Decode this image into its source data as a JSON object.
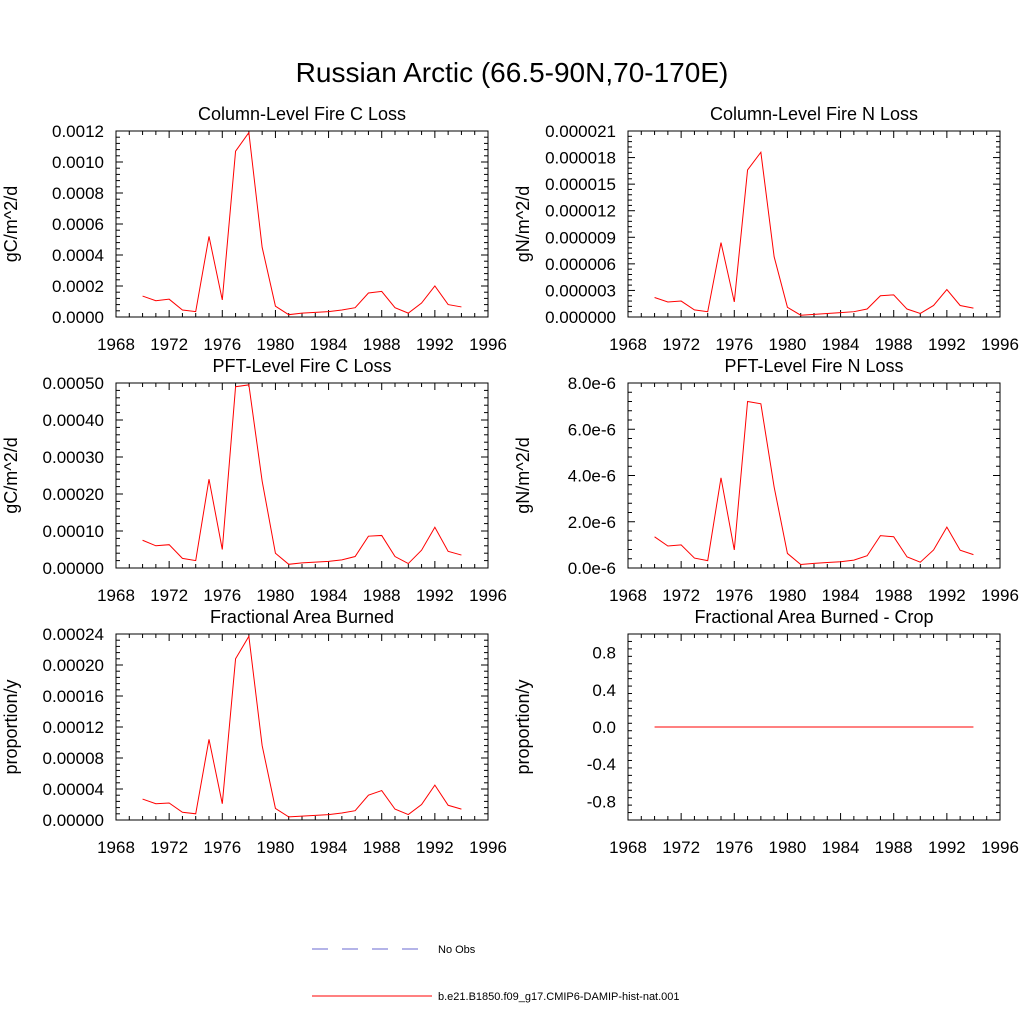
{
  "figure_title": "Russian Arctic (66.5-90N,70-170E)",
  "legend": {
    "entries": [
      {
        "label": "No Obs",
        "style": "dashed",
        "color": "#6a6ad0"
      },
      {
        "label": "b.e21.B1850.f09_g17.CMIP6-DAMIP-hist-nat.001",
        "style": "solid",
        "color": "#ff0000"
      }
    ]
  },
  "chart_data": [
    {
      "type": "line",
      "title": "Column-Level Fire C Loss",
      "xlabel": "",
      "ylabel": "gC/m^2/d",
      "xlim": [
        1968,
        1996
      ],
      "ylim": [
        0,
        0.0012
      ],
      "xticks": [
        1968,
        1972,
        1976,
        1980,
        1984,
        1988,
        1992,
        1996
      ],
      "yticks": [
        0,
        0.0002,
        0.0004,
        0.0006,
        0.0008,
        0.001,
        0.0012
      ],
      "ytick_labels": [
        "0.0000",
        "0.0002",
        "0.0004",
        "0.0006",
        "0.0008",
        "0.0010",
        "0.0012"
      ],
      "x": [
        1970,
        1971,
        1972,
        1973,
        1974,
        1975,
        1976,
        1977,
        1978,
        1979,
        1980,
        1981,
        1982,
        1983,
        1984,
        1985,
        1986,
        1987,
        1988,
        1989,
        1990,
        1991,
        1992,
        1993,
        1994
      ],
      "series": [
        {
          "name": "b.e21.B1850.f09_g17.CMIP6-DAMIP-hist-nat.001",
          "color": "#ff0000",
          "values": [
            0.000135,
            0.000105,
            0.000115,
            4.5e-05,
            3.5e-05,
            0.00052,
            0.00011,
            0.00107,
            0.00119,
            0.00045,
            7e-05,
            1.5e-05,
            2.5e-05,
            3e-05,
            3.5e-05,
            4.5e-05,
            6e-05,
            0.000155,
            0.000165,
            6e-05,
            2.5e-05,
            9e-05,
            0.0002,
            8e-05,
            6.5e-05
          ]
        }
      ]
    },
    {
      "type": "line",
      "title": "Column-Level Fire N Loss",
      "xlabel": "",
      "ylabel": "gN/m^2/d",
      "xlim": [
        1968,
        1996
      ],
      "ylim": [
        0,
        2.1e-05
      ],
      "xticks": [
        1968,
        1972,
        1976,
        1980,
        1984,
        1988,
        1992,
        1996
      ],
      "yticks": [
        0,
        3e-06,
        6e-06,
        9e-06,
        1.2e-05,
        1.5e-05,
        1.8e-05,
        2.1e-05
      ],
      "ytick_labels": [
        "0.000000",
        "0.000003",
        "0.000006",
        "0.000009",
        "0.000012",
        "0.000015",
        "0.000018",
        "0.000021"
      ],
      "x": [
        1970,
        1971,
        1972,
        1973,
        1974,
        1975,
        1976,
        1977,
        1978,
        1979,
        1980,
        1981,
        1982,
        1983,
        1984,
        1985,
        1986,
        1987,
        1988,
        1989,
        1990,
        1991,
        1992,
        1993,
        1994
      ],
      "series": [
        {
          "name": "b.e21.B1850.f09_g17.CMIP6-DAMIP-hist-nat.001",
          "color": "#ff0000",
          "values": [
            2.2e-06,
            1.7e-06,
            1.8e-06,
            8e-07,
            6e-07,
            8.4e-06,
            1.7e-06,
            1.66e-05,
            1.86e-05,
            6.8e-06,
            1.1e-06,
            2e-07,
            3e-07,
            4e-07,
            5e-07,
            6e-07,
            9e-07,
            2.4e-06,
            2.5e-06,
            9e-07,
            4e-07,
            1.3e-06,
            3.1e-06,
            1.3e-06,
            1e-06
          ]
        }
      ]
    },
    {
      "type": "line",
      "title": "PFT-Level Fire C Loss",
      "xlabel": "",
      "ylabel": "gC/m^2/d",
      "xlim": [
        1968,
        1996
      ],
      "ylim": [
        0,
        0.0005
      ],
      "xticks": [
        1968,
        1972,
        1976,
        1980,
        1984,
        1988,
        1992,
        1996
      ],
      "yticks": [
        0,
        0.0001,
        0.0002,
        0.0003,
        0.0004,
        0.0005
      ],
      "ytick_labels": [
        "0.00000",
        "0.00010",
        "0.00020",
        "0.00030",
        "0.00040",
        "0.00050"
      ],
      "x": [
        1970,
        1971,
        1972,
        1973,
        1974,
        1975,
        1976,
        1977,
        1978,
        1979,
        1980,
        1981,
        1982,
        1983,
        1984,
        1985,
        1986,
        1987,
        1988,
        1989,
        1990,
        1991,
        1992,
        1993,
        1994
      ],
      "series": [
        {
          "name": "b.e21.B1850.f09_g17.CMIP6-DAMIP-hist-nat.001",
          "color": "#ff0000",
          "values": [
            7.5e-05,
            6e-05,
            6.3e-05,
            2.6e-05,
            2e-05,
            0.00024,
            5e-05,
            0.00049,
            0.000495,
            0.000235,
            4e-05,
            1e-05,
            1.4e-05,
            1.6e-05,
            1.8e-05,
            2.2e-05,
            3.1e-05,
            8.6e-05,
            8.8e-05,
            3.1e-05,
            1.2e-05,
            4.8e-05,
            0.00011,
            4.5e-05,
            3.5e-05
          ]
        }
      ]
    },
    {
      "type": "line",
      "title": "PFT-Level Fire N Loss",
      "xlabel": "",
      "ylabel": "gN/m^2/d",
      "xlim": [
        1968,
        1996
      ],
      "ylim": [
        0,
        8e-06
      ],
      "xticks": [
        1968,
        1972,
        1976,
        1980,
        1984,
        1988,
        1992,
        1996
      ],
      "yticks": [
        0,
        2e-06,
        4e-06,
        6e-06,
        8e-06
      ],
      "ytick_labels": [
        "0.0e-6",
        "2.0e-6",
        "4.0e-6",
        "6.0e-6",
        "8.0e-6"
      ],
      "x": [
        1970,
        1971,
        1972,
        1973,
        1974,
        1975,
        1976,
        1977,
        1978,
        1979,
        1980,
        1981,
        1982,
        1983,
        1984,
        1985,
        1986,
        1987,
        1988,
        1989,
        1990,
        1991,
        1992,
        1993,
        1994
      ],
      "series": [
        {
          "name": "b.e21.B1850.f09_g17.CMIP6-DAMIP-hist-nat.001",
          "color": "#ff0000",
          "values": [
            1.35e-06,
            9.5e-07,
            1e-06,
            4.3e-07,
            3.2e-07,
            3.9e-06,
            7.8e-07,
            7.2e-06,
            7.1e-06,
            3.5e-06,
            6.3e-07,
            1.5e-07,
            2e-07,
            2.4e-07,
            2.7e-07,
            3.4e-07,
            5.3e-07,
            1.4e-06,
            1.35e-06,
            4.8e-07,
            2.5e-07,
            7.8e-07,
            1.77e-06,
            7.7e-07,
            5.8e-07
          ]
        }
      ]
    },
    {
      "type": "line",
      "title": "Fractional Area Burned",
      "xlabel": "",
      "ylabel": "proportion/y",
      "xlim": [
        1968,
        1996
      ],
      "ylim": [
        0,
        0.00024
      ],
      "xticks": [
        1968,
        1972,
        1976,
        1980,
        1984,
        1988,
        1992,
        1996
      ],
      "yticks": [
        0,
        4e-05,
        8e-05,
        0.00012,
        0.00016,
        0.0002,
        0.00024
      ],
      "ytick_labels": [
        "0.00000",
        "0.00004",
        "0.00008",
        "0.00012",
        "0.00016",
        "0.00020",
        "0.00024"
      ],
      "x": [
        1970,
        1971,
        1972,
        1973,
        1974,
        1975,
        1976,
        1977,
        1978,
        1979,
        1980,
        1981,
        1982,
        1983,
        1984,
        1985,
        1986,
        1987,
        1988,
        1989,
        1990,
        1991,
        1992,
        1993,
        1994
      ],
      "series": [
        {
          "name": "b.e21.B1850.f09_g17.CMIP6-DAMIP-hist-nat.001",
          "color": "#ff0000",
          "values": [
            2.7e-05,
            2.1e-05,
            2.2e-05,
            1e-05,
            8e-06,
            0.000104,
            2.1e-05,
            0.000208,
            0.000237,
            9.6e-05,
            1.5e-05,
            4e-06,
            5e-06,
            6e-06,
            7e-06,
            9e-06,
            1.2e-05,
            3.2e-05,
            3.8e-05,
            1.4e-05,
            7e-06,
            2e-05,
            4.5e-05,
            1.9e-05,
            1.4e-05
          ]
        }
      ]
    },
    {
      "type": "line",
      "title": "Fractional Area Burned - Crop",
      "xlabel": "",
      "ylabel": "proportion/y",
      "xlim": [
        1968,
        1996
      ],
      "ylim": [
        -1,
        1
      ],
      "xticks": [
        1968,
        1972,
        1976,
        1980,
        1984,
        1988,
        1992,
        1996
      ],
      "yticks": [
        -0.8,
        -0.4,
        0,
        0.4,
        0.8
      ],
      "ytick_labels": [
        "-0.8",
        "-0.4",
        "0.0",
        "0.4",
        "0.8"
      ],
      "x": [
        1970,
        1994
      ],
      "series": [
        {
          "name": "b.e21.B1850.f09_g17.CMIP6-DAMIP-hist-nat.001",
          "color": "#ff0000",
          "values": [
            0,
            0
          ]
        }
      ]
    }
  ]
}
